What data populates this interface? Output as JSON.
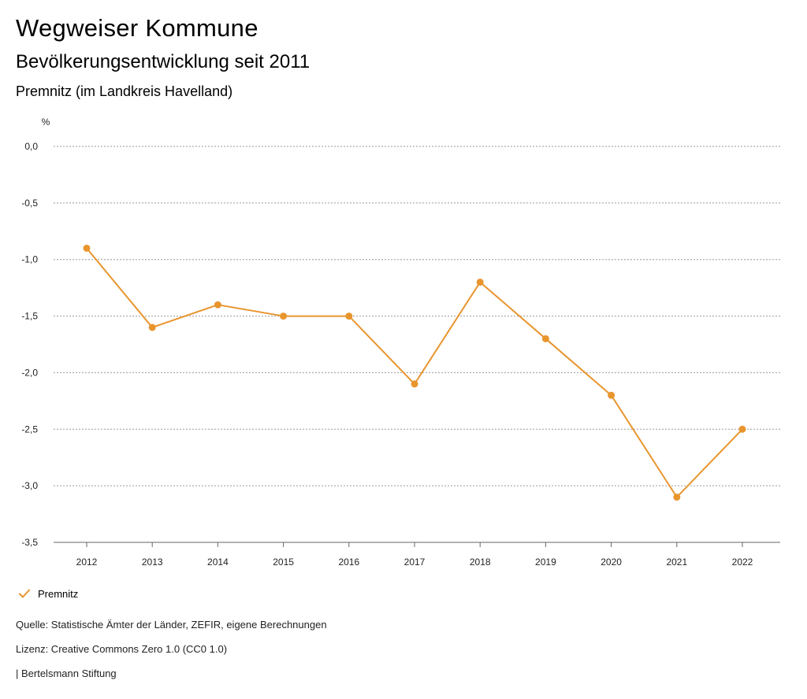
{
  "header": {
    "title": "Wegweiser Kommune",
    "subtitle": "Bevölkerungsentwicklung seit 2011",
    "region": "Premnitz (im Landkreis Havelland)"
  },
  "chart_data": {
    "type": "line",
    "title": "Bevölkerungsentwicklung seit 2011",
    "xlabel": "",
    "ylabel": "%",
    "categories": [
      "2012",
      "2013",
      "2014",
      "2015",
      "2016",
      "2017",
      "2018",
      "2019",
      "2020",
      "2021",
      "2022"
    ],
    "series": [
      {
        "name": "Premnitz",
        "color": "#e8952e",
        "values": [
          -0.9,
          -1.6,
          -1.4,
          -1.5,
          -1.5,
          -2.1,
          -1.2,
          -1.7,
          -2.2,
          -3.1,
          -2.5
        ]
      }
    ],
    "ylim": [
      -3.5,
      0.0
    ],
    "yticks": [
      0.0,
      -0.5,
      -1.0,
      -1.5,
      -2.0,
      -2.5,
      -3.0,
      -3.5
    ],
    "ytick_labels": [
      "0,0",
      "-0,5",
      "-1,0",
      "-1,5",
      "-2,0",
      "-2,5",
      "-3,0",
      "-3,5"
    ],
    "grid": true,
    "legend": "bottom-left"
  },
  "legend": {
    "label": "Premnitz",
    "icon": "check-icon"
  },
  "footer": {
    "source": "Quelle: Statistische Ämter der Länder, ZEFIR, eigene Berechnungen",
    "license": "Lizenz: Creative Commons Zero 1.0 (CC0 1.0)",
    "publisher": "| Bertelsmann Stiftung"
  }
}
